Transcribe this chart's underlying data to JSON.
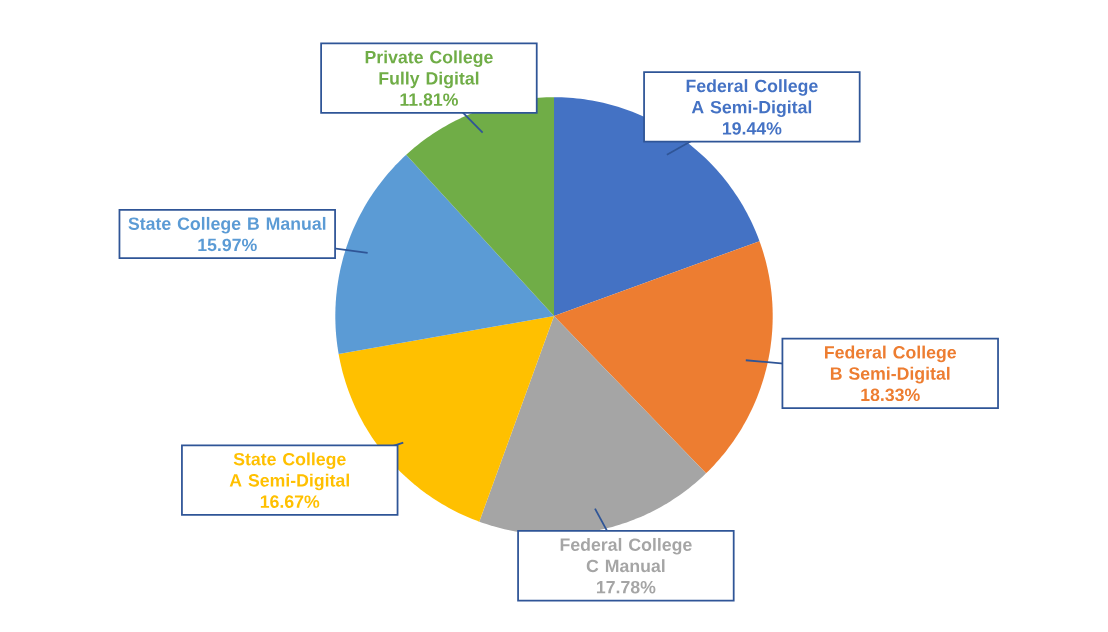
{
  "chart_data": {
    "type": "pie",
    "categories": [
      "Federal College A Semi-Digital",
      "Federal College B Semi-Digital",
      "Federal College C Manual",
      "State College A Semi-Digital",
      "State College B Manual",
      "Private College Fully Digital"
    ],
    "values": [
      19.44,
      18.33,
      17.78,
      16.67,
      15.97,
      11.81
    ],
    "value_labels": [
      "19.44%",
      "18.33%",
      "17.78%",
      "16.67%",
      "15.97%",
      "11.81%"
    ],
    "colors": [
      "#4472c4",
      "#ed7d31",
      "#a5a5a5",
      "#ffc000",
      "#5b9bd5",
      "#70ad47"
    ]
  }
}
